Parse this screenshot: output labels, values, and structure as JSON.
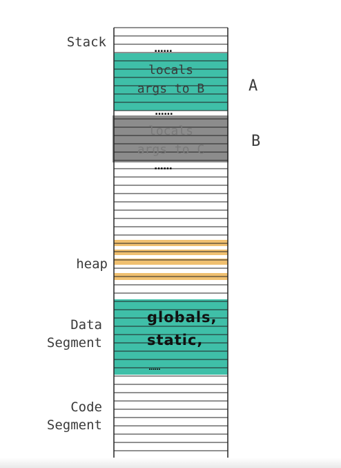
{
  "labels": {
    "stack": "Stack",
    "heap": "heap",
    "data_segment": "Data\nSegment",
    "code_segment": "Code\nSegment"
  },
  "frames": {
    "a": {
      "letter": "A",
      "text": "locals\nargs to B"
    },
    "b": {
      "letter": "B",
      "text": "locals\nargs to C"
    }
  },
  "data_box": {
    "text": "globals,\nstatic,",
    "ellipsis": "......"
  },
  "ellipsis": "......",
  "colors": {
    "teal": "#3fbfa8",
    "grey": "#8c8c8c",
    "heap": "#f0c070",
    "line": "#222222",
    "text": "#3a3a3a"
  }
}
